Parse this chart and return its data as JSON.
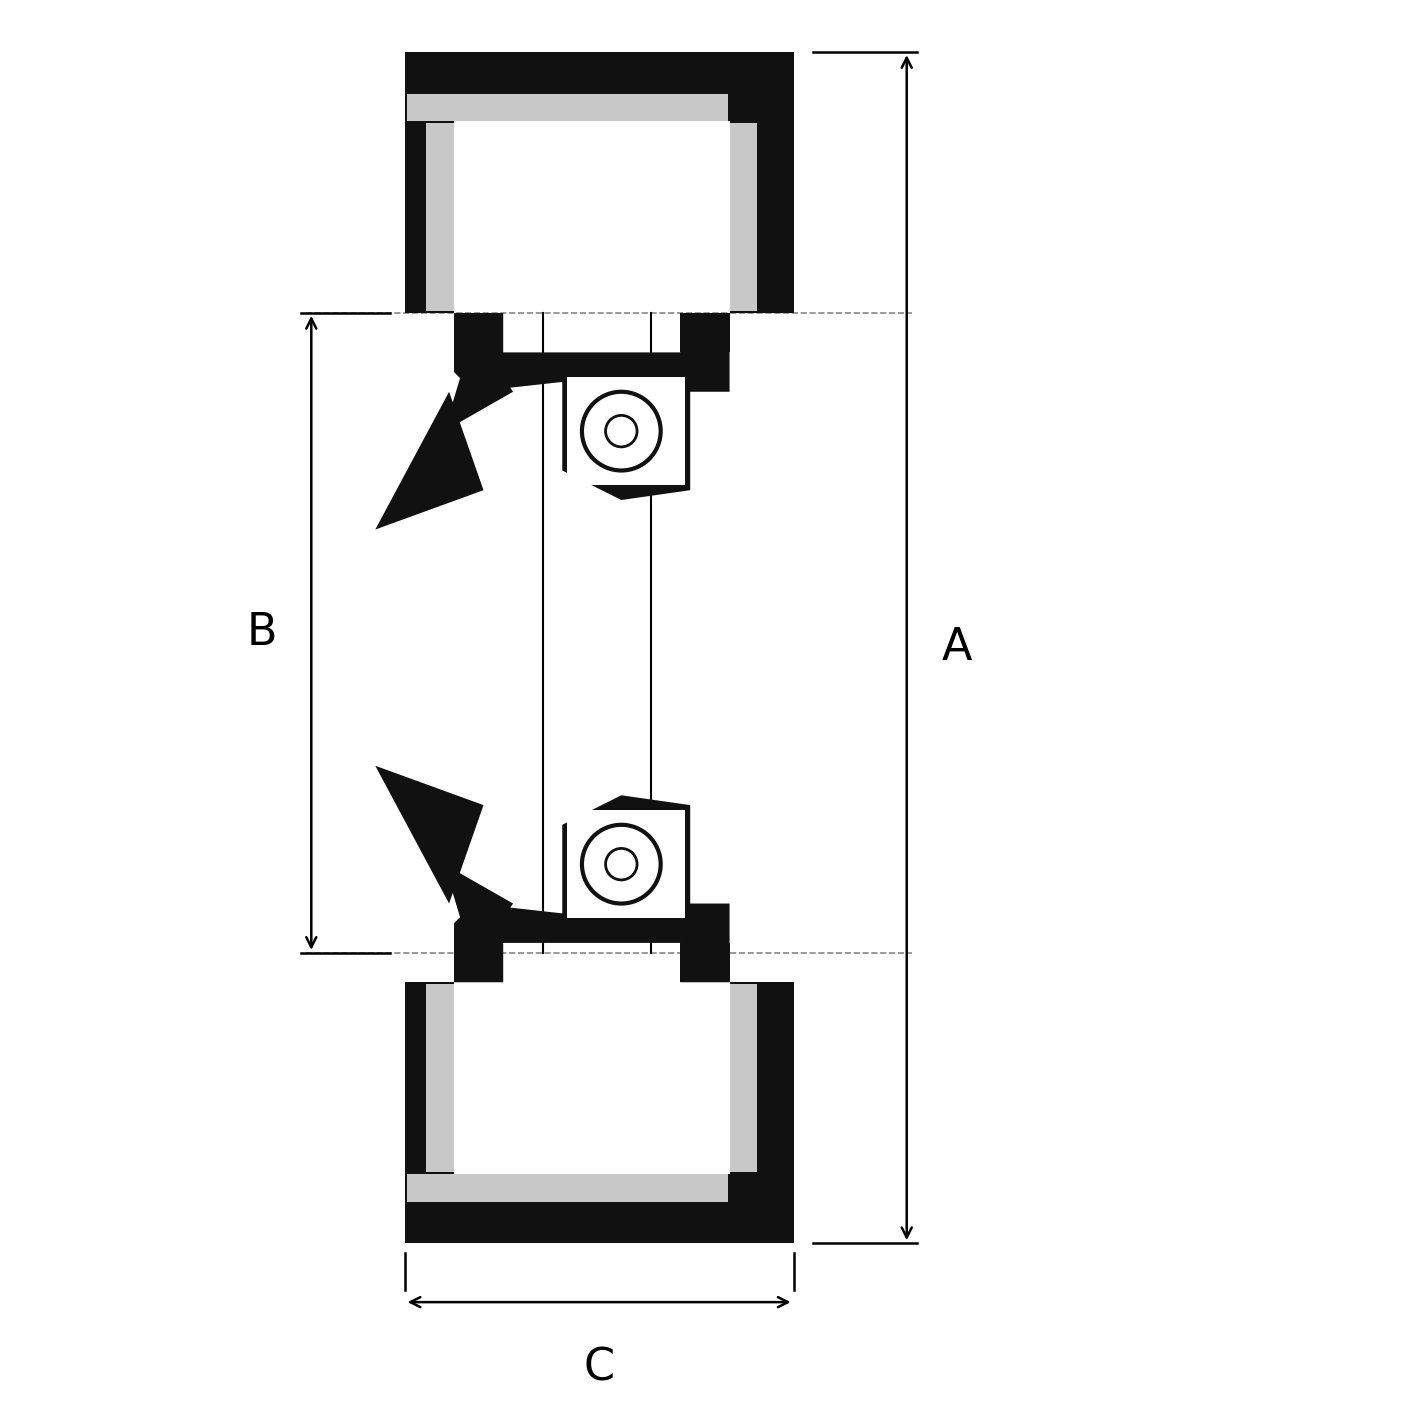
{
  "background_color": "#ffffff",
  "fill_dark": "#111111",
  "fill_light": "#c8c8c8",
  "line_color": "#000000",
  "dashed_color": "#888888",
  "fig_size": [
    14.06,
    14.06
  ],
  "dpi": 100,
  "label_A": "A",
  "label_B": "B",
  "label_C": "C",
  "label_fontsize": 32
}
